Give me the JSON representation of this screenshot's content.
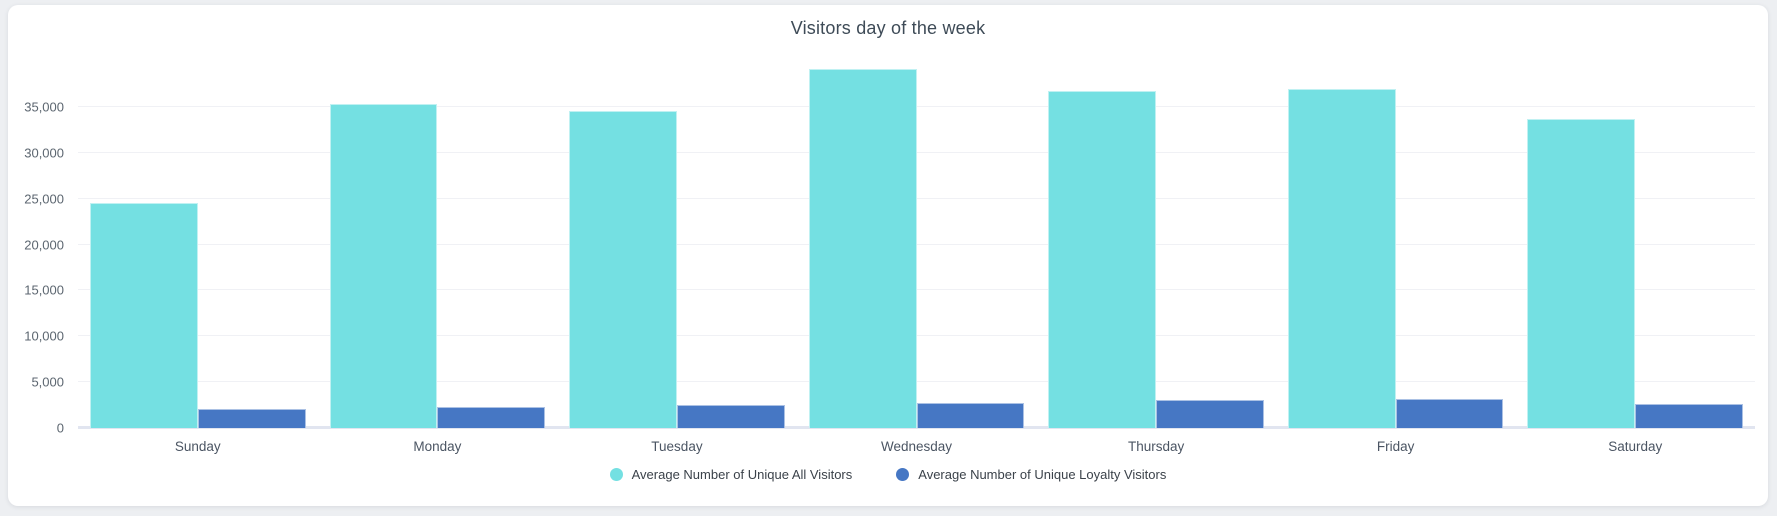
{
  "window": {
    "page_background": "#edeff2",
    "card_background": "#ffffff"
  },
  "chart_data": {
    "type": "bar",
    "title": "Visitors day of the week",
    "categories": [
      "Sunday",
      "Monday",
      "Tuesday",
      "Wednesday",
      "Thursday",
      "Friday",
      "Saturday"
    ],
    "series": [
      {
        "key": "unique-all-visitors",
        "name": "Average Number of Unique All Visitors",
        "color": "#74e0e2",
        "values": [
          24500,
          35300,
          34500,
          39100,
          36700,
          36900,
          33700
        ]
      },
      {
        "key": "unique-loyalty-visitors",
        "name": "Average Number of Unique Loyalty Visitors",
        "color": "#4677c4",
        "values": [
          2100,
          2300,
          2500,
          2700,
          3000,
          3200,
          2600
        ]
      }
    ],
    "ylim": [
      0,
      40000
    ],
    "yticks": [
      {
        "value": 0,
        "label": "0"
      },
      {
        "value": 5000,
        "label": "5,000"
      },
      {
        "value": 10000,
        "label": "10,000"
      },
      {
        "value": 15000,
        "label": "15,000"
      },
      {
        "value": 20000,
        "label": "20,000"
      },
      {
        "value": 25000,
        "label": "25,000"
      },
      {
        "value": 30000,
        "label": "30,000"
      },
      {
        "value": 35000,
        "label": "35,000"
      }
    ],
    "grid": true,
    "legend_position": "bottom-center",
    "legend_marker": "circle"
  }
}
